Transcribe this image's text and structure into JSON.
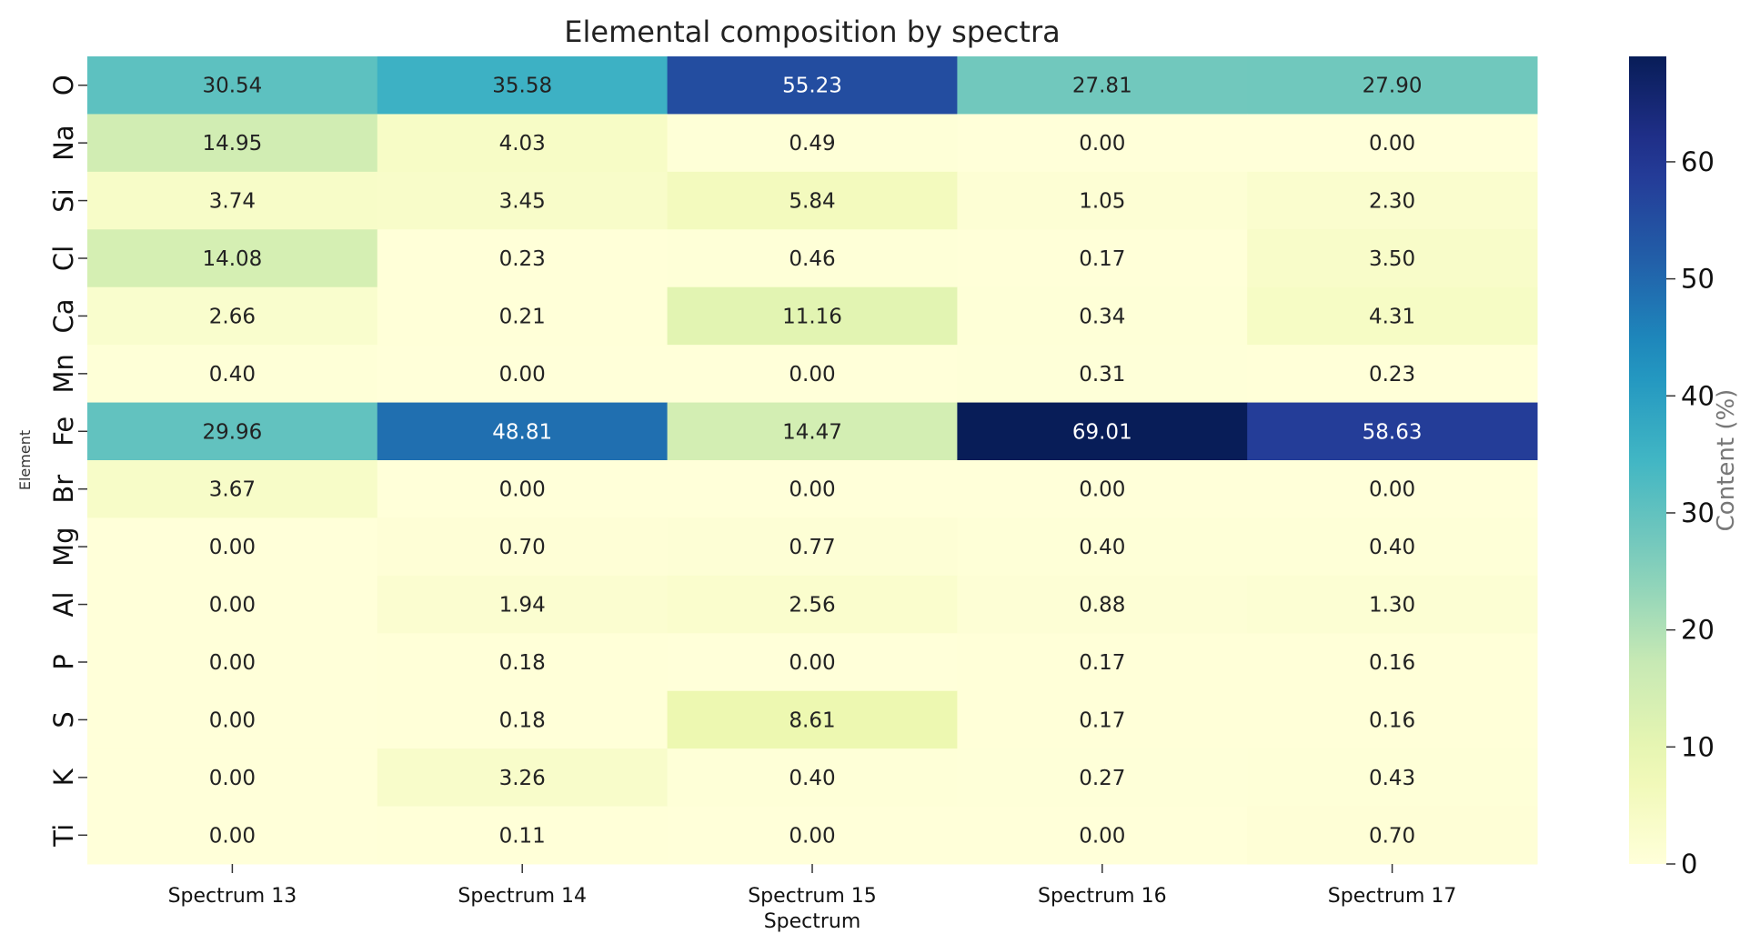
{
  "chart_data": {
    "type": "heatmap",
    "title": "Elemental composition by spectra",
    "xlabel": "Spectrum",
    "ylabel": "Element",
    "colorbar_label": "Content (%)",
    "colormap": "YlGnBu",
    "vlim": [
      0,
      69.01
    ],
    "colorbar_ticks": [
      "0",
      "10",
      "20",
      "30",
      "40",
      "50",
      "60"
    ],
    "columns": [
      "Spectrum 13",
      "Spectrum 14",
      "Spectrum 15",
      "Spectrum 16",
      "Spectrum 17"
    ],
    "rows": [
      "O",
      "Na",
      "Si",
      "Cl",
      "Ca",
      "Mn",
      "Fe",
      "Br",
      "Mg",
      "Al",
      "P",
      "S",
      "K",
      "Ti"
    ],
    "values": [
      [
        30.54,
        35.58,
        55.23,
        27.81,
        27.9
      ],
      [
        14.95,
        4.03,
        0.49,
        0.0,
        0.0
      ],
      [
        3.74,
        3.45,
        5.84,
        1.05,
        2.3
      ],
      [
        14.08,
        0.23,
        0.46,
        0.17,
        3.5
      ],
      [
        2.66,
        0.21,
        11.16,
        0.34,
        4.31
      ],
      [
        0.4,
        0.0,
        0.0,
        0.31,
        0.23
      ],
      [
        29.96,
        48.81,
        14.47,
        69.01,
        58.63
      ],
      [
        3.67,
        0.0,
        0.0,
        0.0,
        0.0
      ],
      [
        0.0,
        0.7,
        0.77,
        0.4,
        0.4
      ],
      [
        0.0,
        1.94,
        2.56,
        0.88,
        1.3
      ],
      [
        0.0,
        0.18,
        0.0,
        0.17,
        0.16
      ],
      [
        0.0,
        0.18,
        8.61,
        0.17,
        0.16
      ],
      [
        0.0,
        3.26,
        0.4,
        0.27,
        0.43
      ],
      [
        0.0,
        0.11,
        0.0,
        0.0,
        0.7
      ]
    ],
    "value_format": "2 decimals",
    "grid": false,
    "legend": "colorbar-right"
  }
}
